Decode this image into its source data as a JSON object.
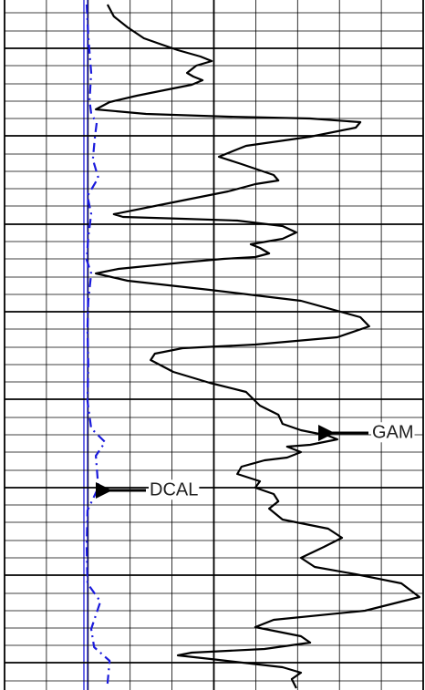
{
  "chart_data": {
    "type": "line",
    "orientation": "vertical",
    "xlim": [
      0,
      100
    ],
    "ylim": [
      0,
      757
    ],
    "xticks": [
      0,
      10,
      20,
      30,
      40,
      50,
      60,
      70,
      80,
      90,
      100
    ],
    "yticks": [
      14,
      34,
      53,
      72,
      92,
      111,
      130,
      149,
      169,
      188,
      207,
      226,
      246,
      265,
      284,
      304,
      323,
      342,
      361,
      381,
      400,
      419,
      438,
      458,
      477,
      496,
      516,
      535,
      554,
      573,
      593,
      612,
      631,
      651,
      670,
      689,
      708,
      727,
      747
    ],
    "grid": true,
    "series": [
      {
        "name": "GAM",
        "color": "#000000",
        "dash": false,
        "values": [
          24.6,
          26.1,
          29.4,
          33.3,
          37.0,
          41.4,
          46.8,
          49.5,
          45.8,
          43.6,
          45.1,
          47.3,
          44.7,
          39.2,
          31.6,
          25.1,
          21.8,
          33.8,
          53.4,
          73.0,
          85.0,
          83.9,
          73.0,
          57.7,
          51.2,
          56.6,
          64.3,
          65.4,
          59.9,
          53.4,
          37.0,
          26.1,
          28.3,
          42.5,
          55.6,
          66.4,
          69.7,
          66.4,
          58.8,
          61.0,
          63.2,
          59.9,
          52.3,
          42.5,
          27.2,
          21.8,
          29.4,
          49.0,
          70.8,
          85.0,
          87.1,
          79.5,
          59.9,
          42.5,
          35.9,
          34.9,
          40.3,
          49.0,
          57.7,
          61.0,
          65.4,
          66.4,
          70.8,
          77.3,
          79.5,
          73.0,
          67.5,
          70.8,
          67.5,
          62.1,
          56.6,
          55.6,
          61.0,
          59.9,
          64.3,
          65.4,
          63.2,
          66.4,
          77.3,
          80.6,
          76.3,
          70.8,
          74.1,
          83.9,
          94.8,
          99.1,
          86.1,
          64.3,
          59.9,
          70.8,
          73.0,
          62.1,
          44.7,
          41.4,
          51.2,
          66.4,
          70.8,
          68.6,
          69.7
        ],
        "depth": [
          5,
          18,
          30,
          42,
          48,
          55,
          62,
          67,
          72,
          80,
          84,
          88,
          93,
          98,
          105,
          112,
          120,
          125,
          128,
          130,
          134,
          140,
          150,
          160,
          172,
          180,
          192,
          198,
          202,
          210,
          225,
          235,
          238,
          240,
          242,
          248,
          255,
          262,
          268,
          272,
          278,
          282,
          284,
          288,
          295,
          300,
          308,
          318,
          330,
          348,
          358,
          370,
          378,
          382,
          388,
          395,
          408,
          420,
          430,
          445,
          455,
          465,
          472,
          478,
          482,
          488,
          490,
          496,
          502,
          505,
          512,
          520,
          528,
          535,
          542,
          550,
          558,
          570,
          580,
          590,
          600,
          612,
          622,
          630,
          640,
          655,
          670,
          680,
          688,
          698,
          705,
          712,
          716,
          719,
          724,
          732,
          738,
          745,
          755
        ]
      },
      {
        "name": "DCAL",
        "color": "#1a1adc",
        "dash": true,
        "values": [
          19.6,
          20.0,
          20.7,
          20.3,
          20.7,
          22.0,
          21.6,
          21.1,
          22.4,
          19.8,
          20.7,
          20.0,
          19.6,
          20.7,
          20.0,
          19.8,
          20.0,
          19.8,
          20.7,
          24.0,
          21.8,
          22.4,
          19.8,
          19.6,
          19.8,
          22.9,
          20.7,
          21.4,
          25.1,
          24.6
        ],
        "depth": [
          5,
          40,
          80,
          110,
          125,
          135,
          150,
          175,
          195,
          215,
          235,
          260,
          285,
          300,
          330,
          360,
          400,
          440,
          470,
          485,
          500,
          535,
          560,
          600,
          640,
          660,
          690,
          710,
          725,
          750
        ]
      }
    ]
  }
}
